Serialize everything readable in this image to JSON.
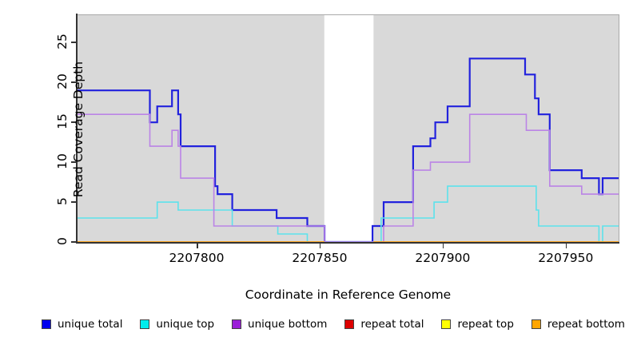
{
  "chart_data": {
    "type": "line",
    "subtype": "step-coverage",
    "title": "",
    "xlabel": "Coordinate in Reference Genome",
    "ylabel": "Read Coverage Depth",
    "x_range": [
      2207751.6,
      2207971.5
    ],
    "y_range": [
      0,
      28.4
    ],
    "x_ticks": [
      2207800,
      2207850,
      2207900,
      2207950
    ],
    "y_ticks": [
      0,
      5,
      10,
      15,
      20,
      25
    ],
    "grid": false,
    "plot_background": "#d9d9d9",
    "mask_region": {
      "x0": 2207851.9,
      "x1": 2207871.9,
      "color": "#ffffff"
    },
    "legend_position": "bottom",
    "series": [
      {
        "name": "unique total",
        "color": "#2222dd",
        "line_width": 2.2,
        "skip_mask": false,
        "steps": [
          [
            2207751.6,
            19
          ],
          [
            2207781,
            15
          ],
          [
            2207784,
            17
          ],
          [
            2207790,
            19
          ],
          [
            2207792.5,
            16
          ],
          [
            2207793.5,
            12
          ],
          [
            2207807.5,
            7
          ],
          [
            2207808.5,
            6
          ],
          [
            2207814.5,
            4
          ],
          [
            2207832.5,
            3
          ],
          [
            2207845,
            2
          ],
          [
            2207852,
            0
          ],
          [
            2207871.5,
            2
          ],
          [
            2207876,
            5
          ],
          [
            2207888,
            12
          ],
          [
            2207895,
            13
          ],
          [
            2207897,
            15
          ],
          [
            2207902,
            17
          ],
          [
            2207911,
            23
          ],
          [
            2207933.5,
            21
          ],
          [
            2207937.5,
            18
          ],
          [
            2207939,
            16
          ],
          [
            2207943.5,
            9
          ],
          [
            2207956.5,
            8
          ],
          [
            2207963.5,
            6
          ],
          [
            2207965,
            8
          ]
        ]
      },
      {
        "name": "unique top",
        "color": "#5ce2ec",
        "line_width": 1.6,
        "skip_mask": false,
        "steps": [
          [
            2207751.6,
            3
          ],
          [
            2207784,
            5
          ],
          [
            2207792.5,
            4
          ],
          [
            2207814.5,
            2
          ],
          [
            2207833,
            1
          ],
          [
            2207845,
            0
          ],
          [
            2207875,
            3
          ],
          [
            2207896.5,
            5
          ],
          [
            2207902,
            7
          ],
          [
            2207938,
            4
          ],
          [
            2207939,
            2
          ],
          [
            2207963.5,
            0
          ],
          [
            2207965,
            2
          ]
        ]
      },
      {
        "name": "unique bottom",
        "color": "#bb84e6",
        "line_width": 1.6,
        "skip_mask": false,
        "steps": [
          [
            2207751.6,
            16
          ],
          [
            2207781,
            12
          ],
          [
            2207790,
            14
          ],
          [
            2207792.5,
            12
          ],
          [
            2207793.5,
            8
          ],
          [
            2207807,
            2
          ],
          [
            2207852,
            0
          ],
          [
            2207876,
            2
          ],
          [
            2207888,
            9
          ],
          [
            2207895,
            10
          ],
          [
            2207911,
            16
          ],
          [
            2207934,
            14
          ],
          [
            2207943.5,
            7
          ],
          [
            2207956.5,
            6
          ]
        ]
      },
      {
        "name": "repeat total",
        "color": "#dd0000",
        "line_width": 1.6,
        "skip_mask": true,
        "steps": [
          [
            2207751.6,
            0
          ]
        ]
      },
      {
        "name": "repeat top",
        "color": "#ffff00",
        "line_width": 1.6,
        "skip_mask": true,
        "steps": [
          [
            2207751.6,
            0
          ]
        ]
      },
      {
        "name": "repeat bottom",
        "color": "#ffa020",
        "line_width": 1.6,
        "skip_mask": true,
        "steps": [
          [
            2207751.6,
            0
          ]
        ]
      }
    ],
    "legend": [
      {
        "label": "unique total",
        "color": "#0000ee"
      },
      {
        "label": "unique top",
        "color": "#00eded"
      },
      {
        "label": "unique bottom",
        "color": "#9b1fd8"
      },
      {
        "label": "repeat total",
        "color": "#dd0000"
      },
      {
        "label": "repeat top",
        "color": "#ffff00"
      },
      {
        "label": "repeat bottom",
        "color": "#ffa500"
      }
    ]
  }
}
